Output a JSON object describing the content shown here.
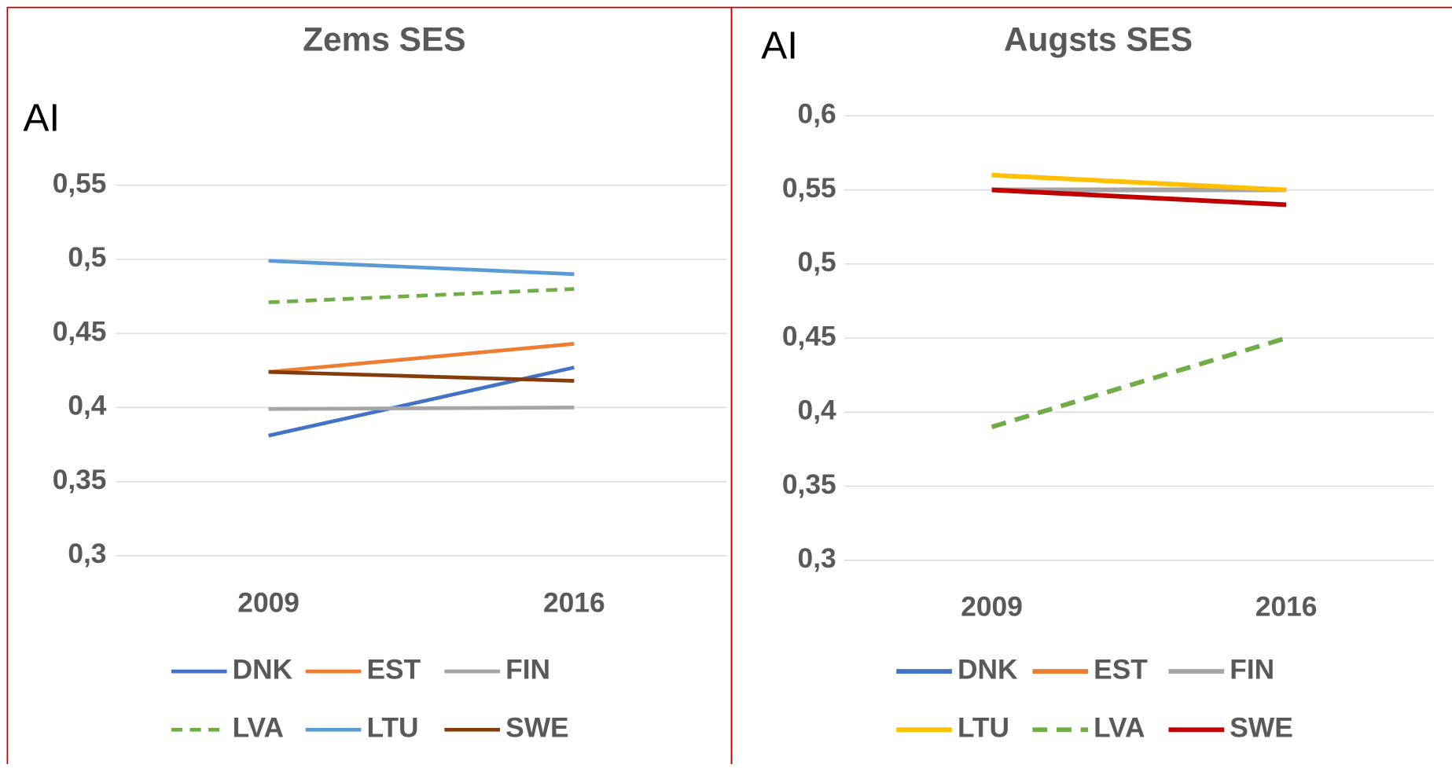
{
  "chart_data": [
    {
      "type": "line",
      "title": "Zems SES",
      "y_label": "AI",
      "categories": [
        "2009",
        "2016"
      ],
      "ylim": [
        0.3,
        0.55
      ],
      "yticks": [
        {
          "value": 0.3,
          "label": "0,3"
        },
        {
          "value": 0.35,
          "label": "0,35"
        },
        {
          "value": 0.4,
          "label": "0,4"
        },
        {
          "value": 0.45,
          "label": "0,45"
        },
        {
          "value": 0.5,
          "label": "0,5"
        },
        {
          "value": 0.55,
          "label": "0,55"
        }
      ],
      "grid": true,
      "series": [
        {
          "name": "DNK",
          "color": "#4472c4",
          "line_style": "solid",
          "values": [
            0.381,
            0.427
          ]
        },
        {
          "name": "EST",
          "color": "#ed7d31",
          "line_style": "solid",
          "values": [
            0.424,
            0.443
          ]
        },
        {
          "name": "FIN",
          "color": "#a5a5a5",
          "line_style": "solid",
          "values": [
            0.399,
            0.4
          ]
        },
        {
          "name": "LVA",
          "color": "#70ad47",
          "line_style": "dashed",
          "values": [
            0.471,
            0.48
          ]
        },
        {
          "name": "LTU",
          "color": "#5b9bd5",
          "line_style": "solid",
          "values": [
            0.499,
            0.49
          ]
        },
        {
          "name": "SWE",
          "color": "#843c0c",
          "line_style": "solid",
          "values": [
            0.424,
            0.418
          ]
        }
      ]
    },
    {
      "type": "line",
      "title": "Augsts SES",
      "y_label": "AI",
      "categories": [
        "2009",
        "2016"
      ],
      "ylim": [
        0.3,
        0.6
      ],
      "yticks": [
        {
          "value": 0.3,
          "label": "0,3"
        },
        {
          "value": 0.35,
          "label": "0,35"
        },
        {
          "value": 0.4,
          "label": "0,4"
        },
        {
          "value": 0.45,
          "label": "0,45"
        },
        {
          "value": 0.5,
          "label": "0,5"
        },
        {
          "value": 0.55,
          "label": "0,55"
        },
        {
          "value": 0.6,
          "label": "0,6"
        }
      ],
      "grid": true,
      "series": [
        {
          "name": "DNK",
          "color": "#4472c4",
          "line_style": "solid",
          "values": [
            0.55,
            0.55
          ]
        },
        {
          "name": "EST",
          "color": "#ed7d31",
          "line_style": "solid",
          "values": [
            0.55,
            0.55
          ]
        },
        {
          "name": "FIN",
          "color": "#a5a5a5",
          "line_style": "solid",
          "values": [
            0.55,
            0.55
          ]
        },
        {
          "name": "LTU",
          "color": "#ffc000",
          "line_style": "solid",
          "values": [
            0.56,
            0.55
          ]
        },
        {
          "name": "LVA",
          "color": "#70ad47",
          "line_style": "dashed",
          "values": [
            0.39,
            0.45
          ]
        },
        {
          "name": "SWE",
          "color": "#c00000",
          "line_style": "solid",
          "values": [
            0.55,
            0.54
          ]
        }
      ]
    }
  ]
}
